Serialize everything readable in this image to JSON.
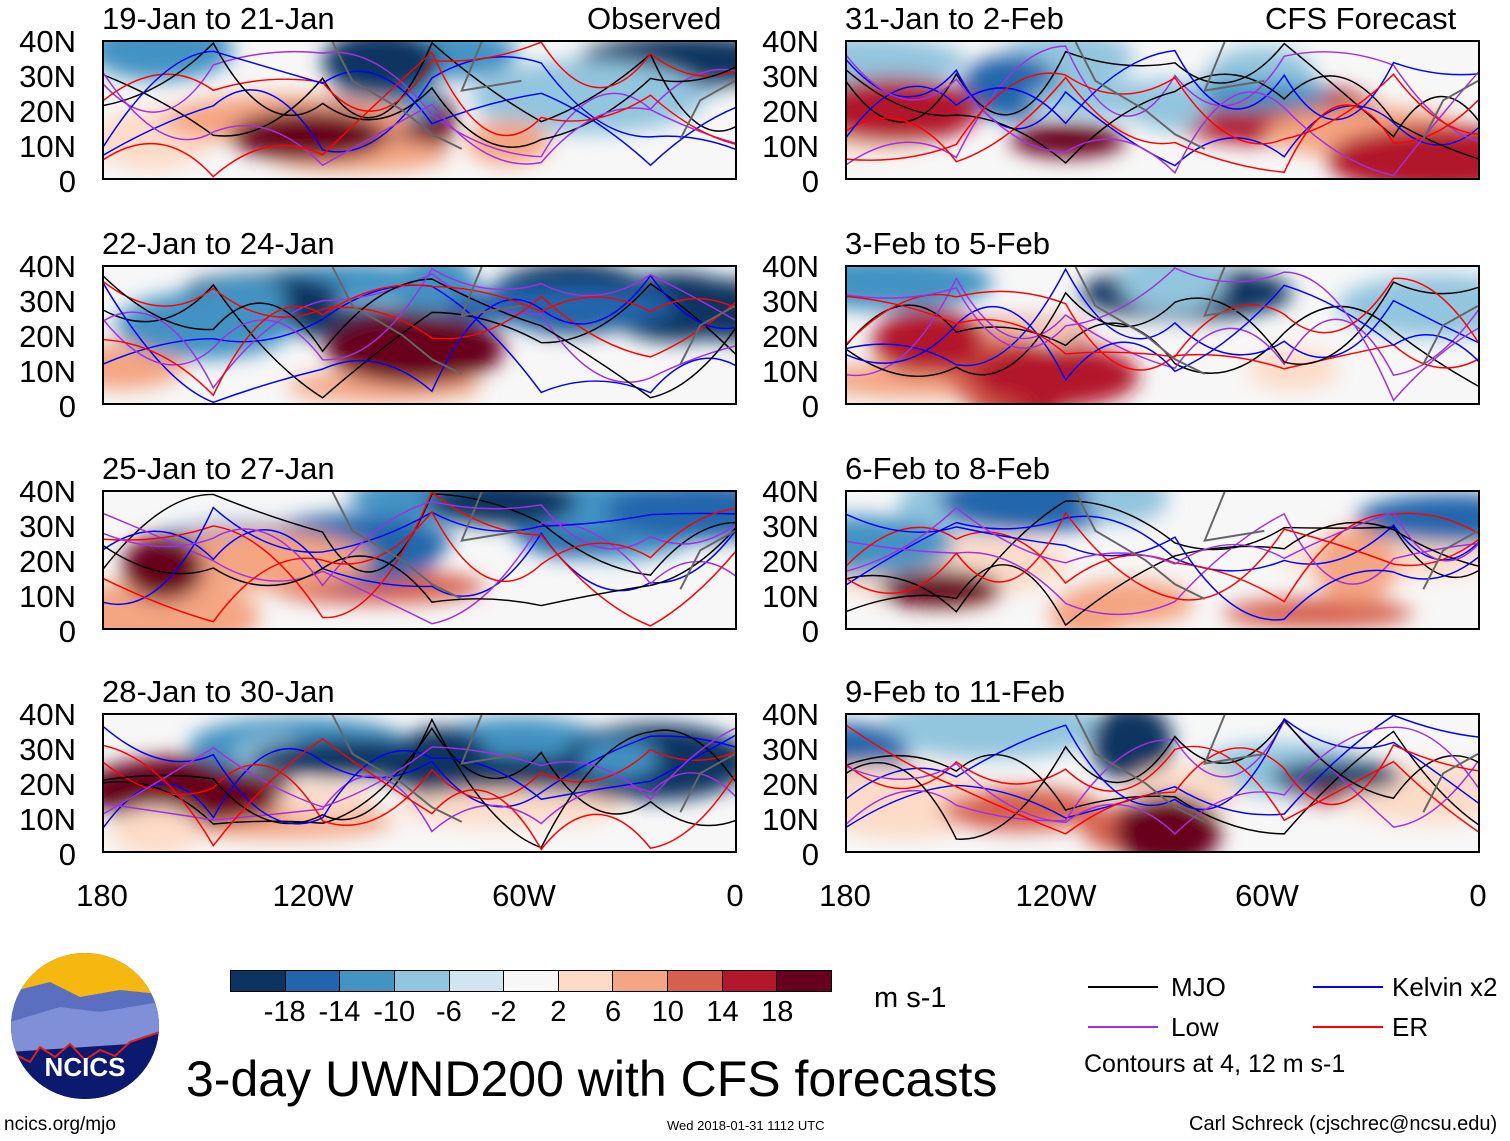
{
  "figure_title": "3-day UWND200 with CFS forecasts",
  "observed_label": "Observed",
  "forecast_label": "CFS Forecast",
  "panels_observed": [
    "19-Jan to 21-Jan",
    "22-Jan to 24-Jan",
    "25-Jan to 27-Jan",
    "28-Jan to 30-Jan"
  ],
  "panels_forecast": [
    "31-Jan to 2-Feb",
    "3-Feb to 5-Feb",
    "6-Feb to 8-Feb",
    "9-Feb to 11-Feb"
  ],
  "lat_ticks": [
    "40N",
    "30N",
    "20N",
    "10N",
    "0"
  ],
  "lon_ticks": [
    "180",
    "120W",
    "60W",
    "0"
  ],
  "colorbar": {
    "colors": [
      "#0b3460",
      "#2166ac",
      "#4393c3",
      "#92c5de",
      "#d1e5f0",
      "#f7f7f7",
      "#fddbc7",
      "#f4a582",
      "#d6604d",
      "#b2182b",
      "#67001f"
    ],
    "labels": [
      "-18",
      "-14",
      "-10",
      "-6",
      "-2",
      "2",
      "6",
      "10",
      "14",
      "18"
    ],
    "units": "m s-1"
  },
  "legend": {
    "items": [
      {
        "label": "MJO",
        "color": "#000000"
      },
      {
        "label": "Kelvin x2",
        "color": "#0000ff"
      },
      {
        "label": "Low",
        "color": "#a030e0"
      },
      {
        "label": "ER",
        "color": "#ff0000"
      }
    ],
    "note": "Contours at 4, 12 m s-1"
  },
  "logo_text": "NCICS",
  "url": "ncics.org/mjo",
  "timestamp": "Wed 2018-01-31 1112 UTC",
  "credit": "Carl Schreck (cjschrec@ncsu.edu)"
}
